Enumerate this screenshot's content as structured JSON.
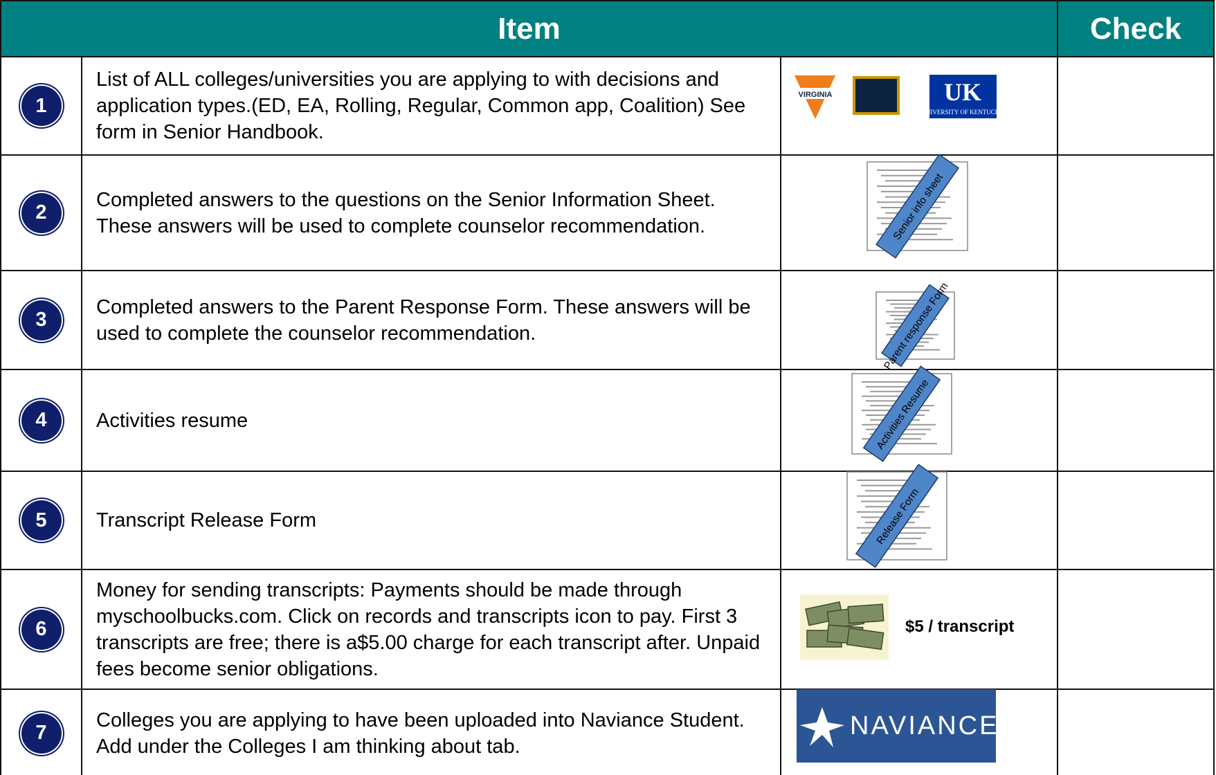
{
  "header": {
    "item": "Item",
    "check": "Check"
  },
  "rows": [
    {
      "number": "1",
      "text": "List of ALL colleges/universities you are applying to with decisions and application types.(ED, EA, Rolling, Regular, Common app, Coalition) See form in Senior Handbook.",
      "logos": [
        "VIRGINIA",
        "UK",
        "UNIVERSITY OF KENTUCKY"
      ]
    },
    {
      "number": "2",
      "text": "Completed answers to the questions on the Senior Information Sheet. These answers will be used to complete counselor recommendation.",
      "stamp": "Senior info sheet"
    },
    {
      "number": "3",
      "text": "Completed answers to the Parent Response Form. These answers will be used to complete the counselor recommendation.",
      "stamp": "Parent response Form"
    },
    {
      "number": "4",
      "text": "Activities resume",
      "stamp": "Activities Resume"
    },
    {
      "number": "5",
      "text": "Transcript Release Form",
      "stamp": "Release Form"
    },
    {
      "number": "6",
      "text": "Money for sending transcripts: Payments should be made through myschoolbucks.com. Click on records and transcripts icon to pay. First 3 transcripts are free; there is a$5.00 charge for each transcript after. Unpaid fees become senior obligations.",
      "caption": "$5 / transcript"
    },
    {
      "number": "7",
      "text": "Colleges you are applying to have been uploaded into Naviance Student. Add under the Colleges I am thinking about tab.",
      "logo": "NAVIANCE"
    }
  ]
}
